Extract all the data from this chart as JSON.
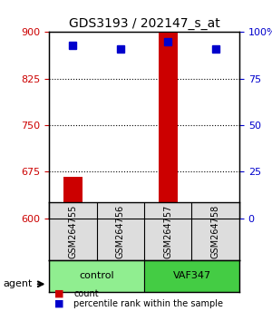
{
  "title": "GDS3193 / 202147_s_at",
  "samples": [
    "GSM264755",
    "GSM264756",
    "GSM264757",
    "GSM264758"
  ],
  "groups": [
    "control",
    "control",
    "VAF347",
    "VAF347"
  ],
  "group_colors": {
    "control": "#90EE90",
    "VAF347": "#44CC44"
  },
  "counts": [
    667,
    604,
    899,
    603
  ],
  "percentile_ranks": [
    93,
    91,
    95,
    91
  ],
  "ylim_left": [
    600,
    900
  ],
  "ylim_right": [
    0,
    100
  ],
  "yticks_left": [
    600,
    675,
    750,
    825,
    900
  ],
  "yticks_right": [
    0,
    25,
    50,
    75,
    100
  ],
  "bar_color": "#CC0000",
  "dot_color": "#0000CC",
  "bar_width": 0.4,
  "grid_color": "#000000",
  "bg_color": "#FFFFFF",
  "plot_bg": "#FFFFFF",
  "legend_count_label": "count",
  "legend_pct_label": "percentile rank within the sample",
  "agent_label": "agent",
  "group_label_1": "control",
  "group_label_2": "VAF347"
}
